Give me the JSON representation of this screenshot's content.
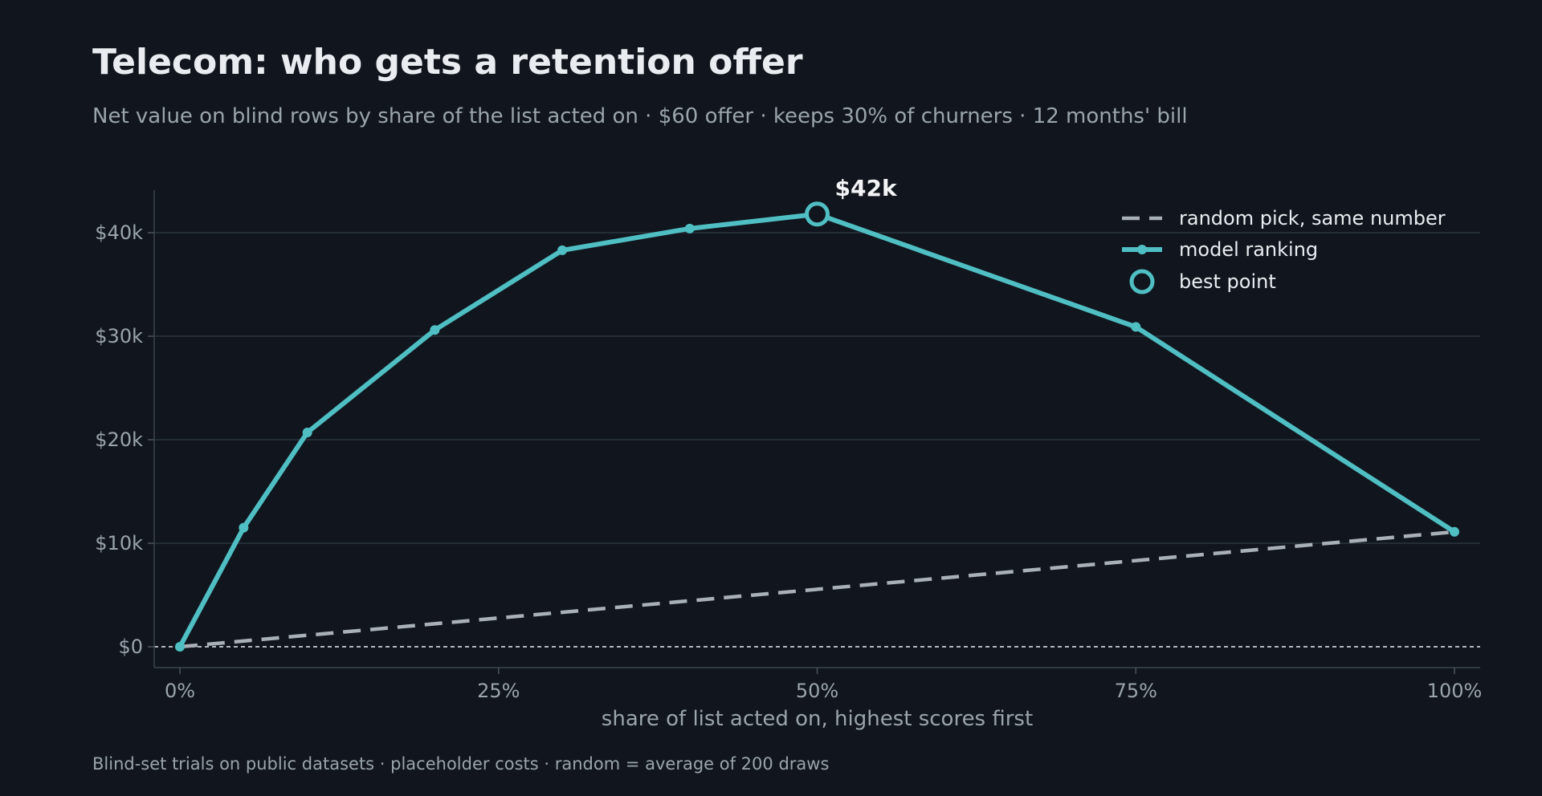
{
  "header": {
    "title": "Telecom: who gets a retention offer",
    "subtitle": "Net value on blind rows by share of the list acted on · $60 offer · keeps 30% of churners · 12 months' bill"
  },
  "footnote": "Blind-set trials on public datasets · placeholder costs · random = average of 200 draws",
  "colors": {
    "background": "#11161e",
    "model": "#4fbfc4",
    "random": "#a9b0b7",
    "grid": "#2b343d",
    "text": "#e9edf1",
    "muted": "#9aa4ad"
  },
  "chart_data": {
    "type": "line",
    "xlabel": "share of list acted on, highest scores first",
    "ylabel": "",
    "xlim": [
      0,
      100
    ],
    "ylim": [
      -2000,
      44000
    ],
    "x_ticks": [
      0,
      25,
      50,
      75,
      100
    ],
    "x_tick_labels": [
      "0%",
      "25%",
      "50%",
      "75%",
      "100%"
    ],
    "y_ticks": [
      0,
      10000,
      20000,
      30000,
      40000
    ],
    "y_tick_labels": [
      "$0",
      "$10k",
      "$20k",
      "$30k",
      "$40k"
    ],
    "grid": "horizontal",
    "legend_position": "top-right",
    "series": [
      {
        "name": "random pick, same number",
        "style": "dashed",
        "x": [
          0,
          100
        ],
        "y": [
          0,
          11100
        ]
      },
      {
        "name": "model ranking",
        "style": "solid-markers",
        "x": [
          0,
          5,
          10,
          20,
          30,
          40,
          50,
          75,
          100
        ],
        "y": [
          0,
          11500,
          20700,
          30600,
          38300,
          40400,
          41800,
          30900,
          11100
        ]
      }
    ],
    "highlight": {
      "name": "best point",
      "x": 50,
      "y": 41800,
      "label": "$42k"
    },
    "reference_line": {
      "y": 0,
      "style": "dotted"
    }
  }
}
